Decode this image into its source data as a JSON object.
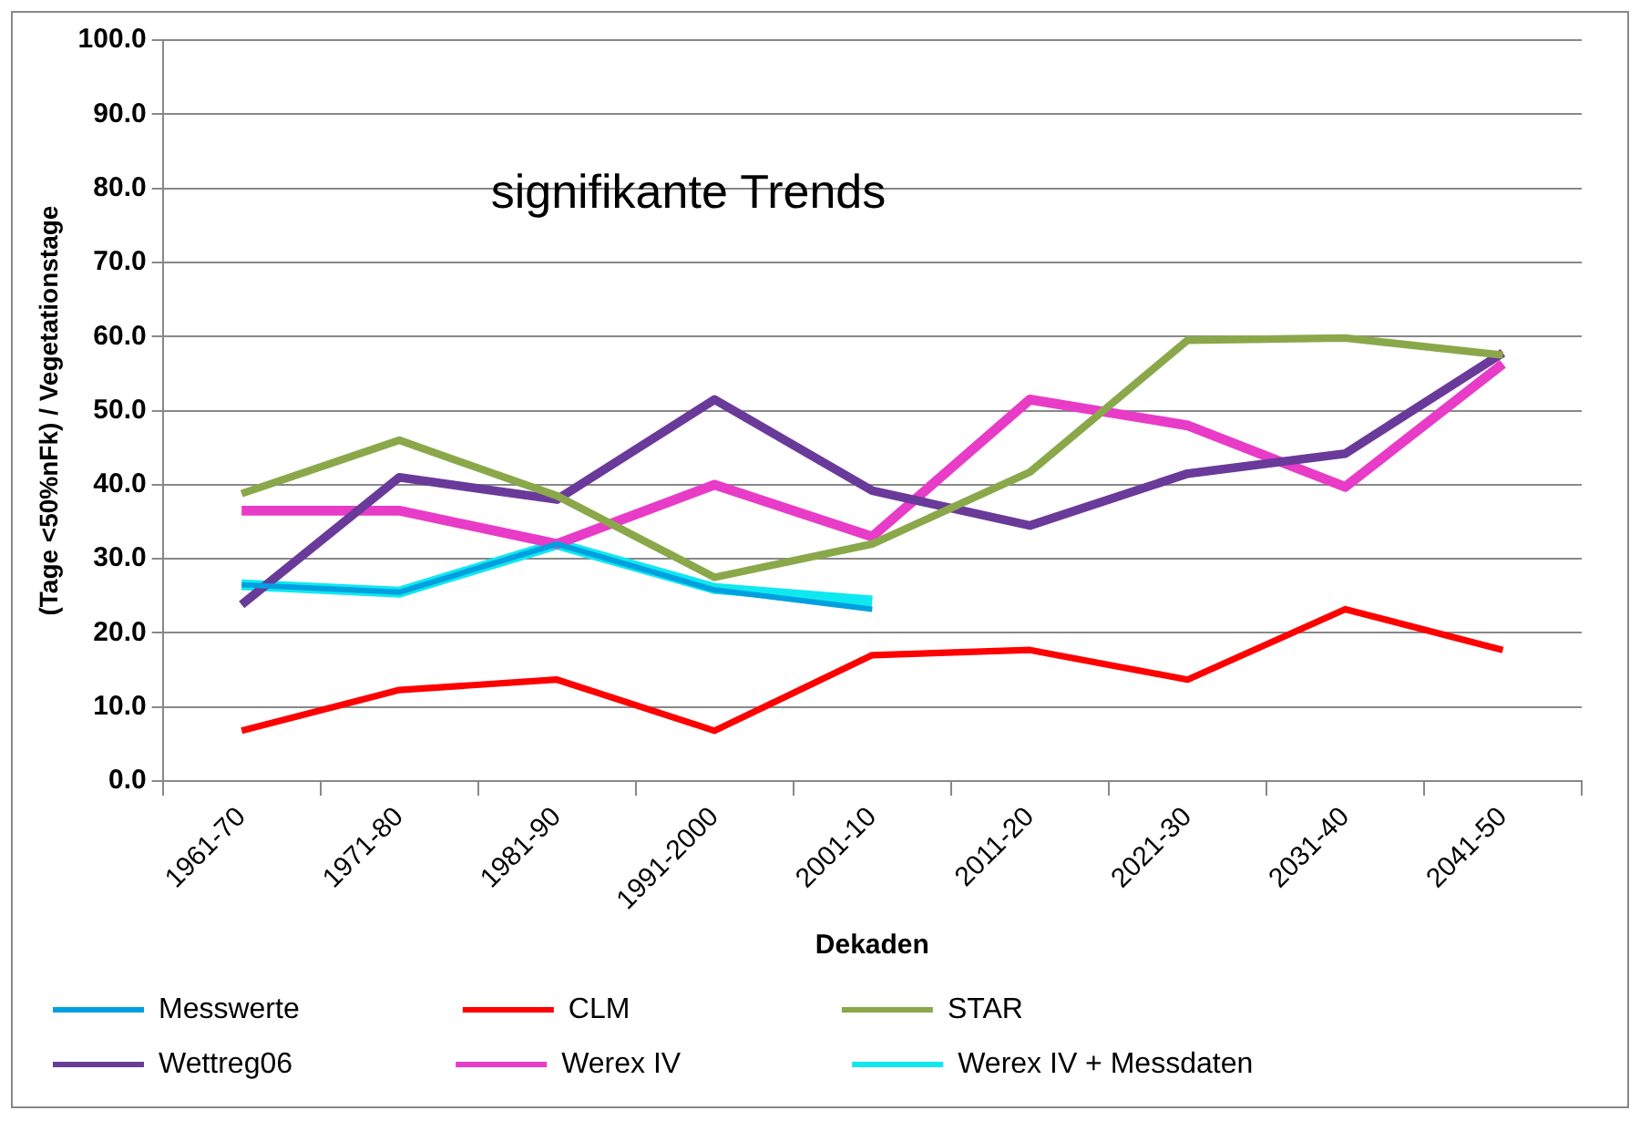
{
  "chart_data": {
    "type": "line",
    "ylabel": "(Tage <50%nFk) / Vegetationstage",
    "xlabel": "Dekaden",
    "annotations": [
      "signifikante Trends"
    ],
    "categories": [
      "1961-70",
      "1971-80",
      "1981-90",
      "1991-2000",
      "2001-10",
      "2011-20",
      "2021-30",
      "2031-40",
      "2041-50"
    ],
    "series": [
      {
        "name": "Messwerte",
        "color": "#00a0e0",
        "values": [
          26.5,
          25.5,
          32,
          25.8,
          23.2,
          null,
          null,
          null,
          null
        ]
      },
      {
        "name": "CLM",
        "color": "#ff0000",
        "values": [
          6.8,
          12.3,
          13.7,
          6.8,
          17,
          17.7,
          13.7,
          23.2,
          17.7
        ]
      },
      {
        "name": "STAR",
        "color": "#8aa84a",
        "values": [
          38.8,
          46,
          38.5,
          27.5,
          32,
          41.7,
          59.5,
          59.8,
          57.5
        ]
      },
      {
        "name": "Wettreg06",
        "color": "#6a3a9a",
        "values": [
          23.8,
          41,
          38,
          51.5,
          39.2,
          34.5,
          41.5,
          44.2,
          57.8
        ]
      },
      {
        "name": "Werex IV",
        "color": "#e83cc8",
        "values": [
          36.5,
          36.5,
          32,
          40,
          33,
          51.5,
          48,
          39.7,
          56.3
        ]
      },
      {
        "name": "Werex IV + Messdaten",
        "color": "#10e8f0",
        "values": [
          26.5,
          25.5,
          32,
          26,
          24.3,
          null,
          null,
          null,
          null
        ]
      }
    ],
    "ylim": [
      0,
      100
    ],
    "yticks": [
      {
        "value": 0,
        "label": "0.0"
      },
      {
        "value": 10,
        "label": "10.0"
      },
      {
        "value": 20,
        "label": "20.0"
      },
      {
        "value": 30,
        "label": "30.0"
      },
      {
        "value": 40,
        "label": "40.0"
      },
      {
        "value": 50,
        "label": "50.0"
      },
      {
        "value": 60,
        "label": "60.0"
      },
      {
        "value": 70,
        "label": "70.0"
      },
      {
        "value": 80,
        "label": "80.0"
      },
      {
        "value": 90,
        "label": "90.0"
      },
      {
        "value": 100,
        "label": "100.0"
      }
    ],
    "grid": "y",
    "legend": "bottom",
    "marker": "none",
    "line_style": "solid"
  }
}
